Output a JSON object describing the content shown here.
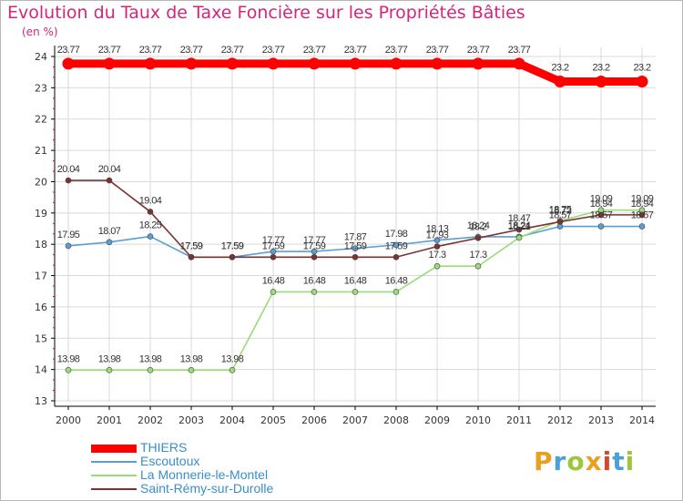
{
  "title": "Evolution du Taux de Taxe Foncière sur les Propriétés Bâties",
  "unit_label": "(en %)",
  "logo_text": "Proxiti",
  "colors": {
    "title": "#d1267a",
    "legend_text": "#3a8ec8",
    "axis": "#000000",
    "grid": "#d9d9d9",
    "tick_red": "#ff0000"
  },
  "chart_data": {
    "type": "line",
    "x": [
      "2000",
      "2001",
      "2002",
      "2003",
      "2004",
      "2005",
      "2006",
      "2007",
      "2008",
      "2009",
      "2010",
      "2011",
      "2012",
      "2013",
      "2014"
    ],
    "ylim": [
      13,
      24
    ],
    "yticks": [
      13,
      14,
      15,
      16,
      17,
      18,
      19,
      20,
      21,
      22,
      23,
      24
    ],
    "grid": true,
    "legend_position": "bottom-left",
    "series": [
      {
        "name": "THIERS",
        "color": "#ff0000",
        "values": [
          23.77,
          23.77,
          23.77,
          23.77,
          23.77,
          23.77,
          23.77,
          23.77,
          23.77,
          23.77,
          23.77,
          23.77,
          23.2,
          23.2,
          23.2
        ],
        "labels": [
          "23.77",
          "23.77",
          "23.77",
          "23.77",
          "23.77",
          "23.77",
          "23.77",
          "23.77",
          "23.77",
          "23.77",
          "23.77",
          "23.77",
          "23.2",
          "23.2",
          "23.2"
        ]
      },
      {
        "name": "Escoutoux",
        "color": "#5a9fd4",
        "values": [
          17.95,
          18.07,
          18.25,
          17.59,
          17.59,
          17.77,
          17.77,
          17.87,
          17.98,
          18.13,
          18.24,
          18.24,
          18.57,
          18.57,
          18.57
        ],
        "labels": [
          "17.95",
          "18.07",
          "18.25",
          "17.59",
          "17.59",
          "17.77",
          "17.77",
          "17.87",
          "17.98",
          "18.13",
          "18.24",
          "18.24",
          "18.57",
          "18.57",
          "18.57"
        ]
      },
      {
        "name": "La Monnerie-le-Montel",
        "color": "#99dd77",
        "values": [
          13.98,
          13.98,
          13.98,
          13.98,
          13.98,
          16.48,
          16.48,
          16.48,
          16.48,
          17.3,
          17.3,
          18.21,
          18.75,
          19.09,
          19.09
        ],
        "labels": [
          "13.98",
          "13.98",
          "13.98",
          "13.98",
          "13.98",
          "16.48",
          "16.48",
          "16.48",
          "16.48",
          "17.3",
          "17.3",
          "18.21",
          "18.75",
          "19.09",
          "19.09"
        ]
      },
      {
        "name": "Saint-Rémy-sur-Durolle",
        "color": "#7a3333",
        "values": [
          20.04,
          20.04,
          19.04,
          17.59,
          17.59,
          17.59,
          17.59,
          17.59,
          17.59,
          17.93,
          18.2,
          18.47,
          18.72,
          18.94,
          18.94
        ],
        "labels": [
          "20.04",
          "20.04",
          "19.04",
          "17.59",
          "17.59",
          "17.59",
          "17.59",
          "17.59",
          "17.59",
          "17.93",
          "18.2",
          "18.47",
          "18.72",
          "18.94",
          "18.94"
        ]
      }
    ]
  }
}
